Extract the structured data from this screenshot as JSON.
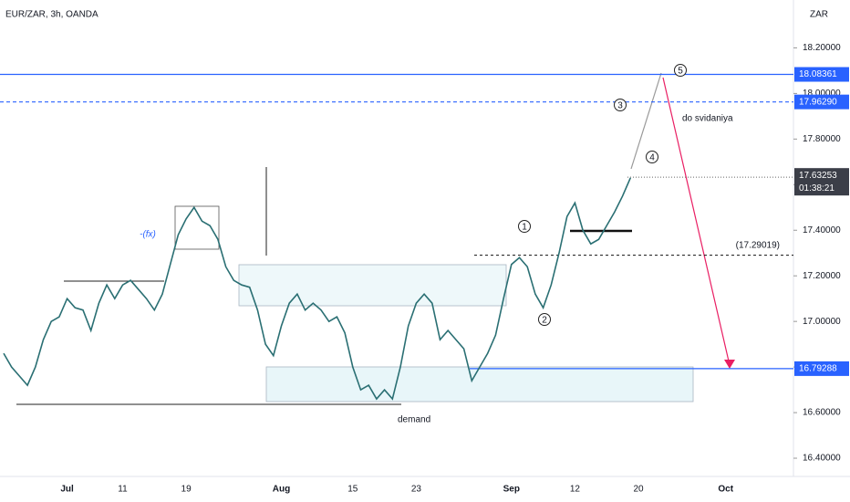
{
  "chart_data": {
    "type": "line",
    "title": "EUR/ZAR, 3h, OANDA",
    "y_axis_label": "ZAR",
    "color": "#2a6f73",
    "categories": [
      null,
      null,
      null,
      null,
      null,
      null,
      null,
      null,
      "Jul",
      null,
      null,
      null,
      null,
      null,
      null,
      "11",
      null,
      null,
      null,
      null,
      null,
      null,
      null,
      "19",
      null,
      null,
      null,
      null,
      null,
      null,
      null,
      null,
      null,
      null,
      null,
      "Aug",
      null,
      null,
      null,
      null,
      null,
      null,
      null,
      null,
      "15",
      null,
      null,
      null,
      null,
      null,
      null,
      null,
      "23",
      null,
      null,
      null,
      null,
      null,
      null,
      null,
      null,
      null,
      null,
      null,
      "Sep",
      null,
      null,
      null,
      null,
      null,
      null,
      null,
      "12",
      null,
      null,
      null,
      null,
      null,
      null,
      null,
      "20",
      null,
      null,
      null,
      null,
      null,
      null,
      null,
      null,
      null,
      null,
      "Oct",
      null,
      null,
      null,
      null,
      null,
      null,
      null,
      null
    ],
    "values": [
      16.86,
      16.8,
      16.76,
      16.72,
      16.8,
      16.92,
      17.0,
      17.02,
      17.1,
      17.06,
      17.05,
      16.96,
      17.08,
      17.16,
      17.1,
      17.16,
      17.18,
      17.14,
      17.1,
      17.05,
      17.12,
      17.25,
      17.38,
      17.45,
      17.5,
      17.44,
      17.42,
      17.36,
      17.24,
      17.18,
      17.16,
      17.15,
      17.05,
      16.9,
      16.85,
      16.98,
      17.08,
      17.12,
      17.05,
      17.08,
      17.05,
      17.0,
      17.02,
      16.95,
      16.8,
      16.7,
      16.72,
      16.66,
      16.7,
      16.66,
      16.8,
      16.98,
      17.08,
      17.12,
      17.08,
      16.92,
      16.96,
      16.92,
      16.88,
      16.74,
      16.8,
      16.86,
      16.94,
      17.1,
      17.25,
      17.28,
      17.24,
      17.12,
      17.06,
      17.16,
      17.3,
      17.46,
      17.52,
      17.4,
      17.34,
      17.36,
      17.42,
      17.48,
      17.55,
      17.63,
      null,
      null,
      null,
      null,
      null,
      null,
      null,
      null,
      null,
      null,
      null,
      null,
      null,
      null,
      null,
      null,
      null,
      null,
      null,
      null
    ],
    "ylim": [
      16.32,
      18.41
    ],
    "yticks": [
      {
        "value": 16.4,
        "label": "16.40000"
      },
      {
        "value": 16.6,
        "label": "16.60000"
      },
      {
        "value": 16.8,
        "label": "16.80000"
      },
      {
        "value": 17.0,
        "label": "17.00000"
      },
      {
        "value": 17.2,
        "label": "17.20000"
      },
      {
        "value": 17.4,
        "label": "17.40000"
      },
      {
        "value": 17.6,
        "label": "17.60000"
      },
      {
        "value": 17.8,
        "label": "17.80000"
      },
      {
        "value": 18.0,
        "label": "18.00000"
      },
      {
        "value": 18.2,
        "label": "18.20000"
      }
    ],
    "levels": [
      {
        "value": 18.08361,
        "label": "18.08361",
        "style": "solid"
      },
      {
        "value": 17.9629,
        "label": "17.96290",
        "style": "dashed"
      },
      {
        "value": 16.79288,
        "label": "16.79288",
        "style": "partial"
      }
    ],
    "last_price": {
      "value": 17.63253,
      "label": "17.63253",
      "countdown": "01:38:21"
    },
    "marked_level": {
      "value": 17.29019,
      "label": "(17.29019)"
    },
    "wave_labels": [
      "1",
      "2",
      "3",
      "4",
      "5"
    ],
    "annotations": [
      "-(fx)",
      "do svidaniya",
      "demand"
    ]
  }
}
